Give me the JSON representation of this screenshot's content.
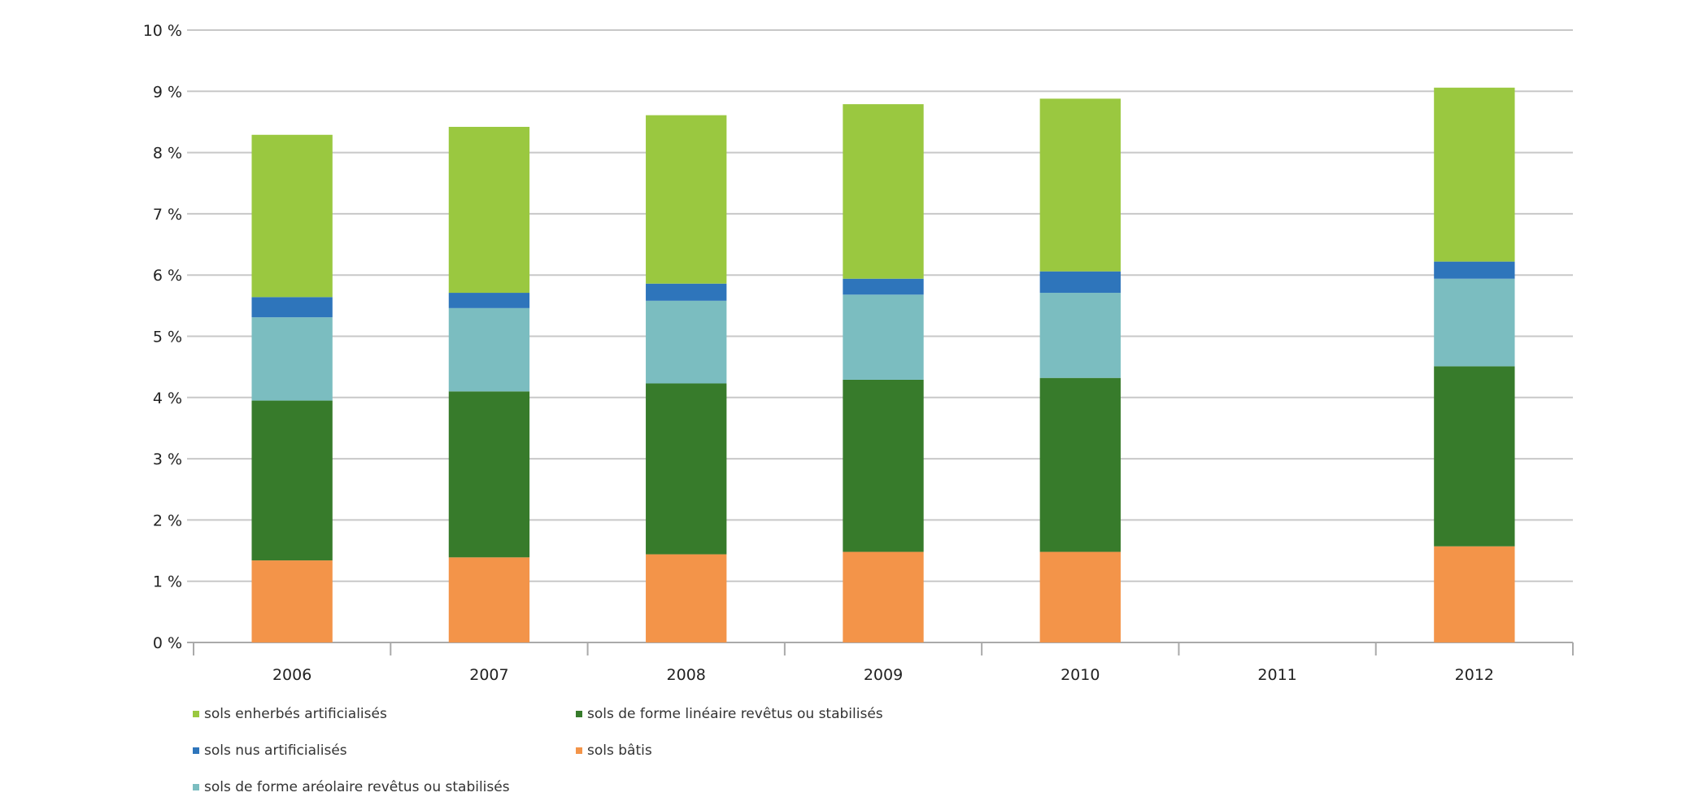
{
  "chart_data": {
    "type": "bar",
    "stacked": true,
    "categories": [
      "2006",
      "2007",
      "2008",
      "2009",
      "2010",
      "2011",
      "2012"
    ],
    "series": [
      {
        "name": "sols bâtis",
        "color": "#f39449",
        "values": [
          1.34,
          1.39,
          1.44,
          1.48,
          1.48,
          null,
          1.57
        ]
      },
      {
        "name": "sols de forme linéaire revêtus ou stabilisés",
        "color": "#377b2b",
        "values": [
          2.61,
          2.71,
          2.79,
          2.81,
          2.84,
          null,
          2.94
        ]
      },
      {
        "name": "sols de forme aréolaire revêtus ou stabilisés",
        "color": "#7bbdc0",
        "values": [
          1.36,
          1.36,
          1.35,
          1.39,
          1.39,
          null,
          1.43
        ]
      },
      {
        "name": "sols nus artificialisés",
        "color": "#2e75bb",
        "values": [
          0.33,
          0.25,
          0.28,
          0.26,
          0.35,
          null,
          0.28
        ]
      },
      {
        "name": "sols enherbés artificialisés",
        "color": "#9ac840",
        "values": [
          2.65,
          2.71,
          2.75,
          2.85,
          2.82,
          null,
          2.84
        ]
      }
    ],
    "yticks": [
      "0 %",
      "1 %",
      "2 %",
      "3 %",
      "4 %",
      "5 %",
      "6 %",
      "7 %",
      "8 %",
      "9 %",
      "10 %"
    ],
    "ylim": [
      0,
      10
    ],
    "grid": true,
    "legend_position": "bottom",
    "legend_order": [
      4,
      1,
      3,
      0,
      2
    ]
  }
}
